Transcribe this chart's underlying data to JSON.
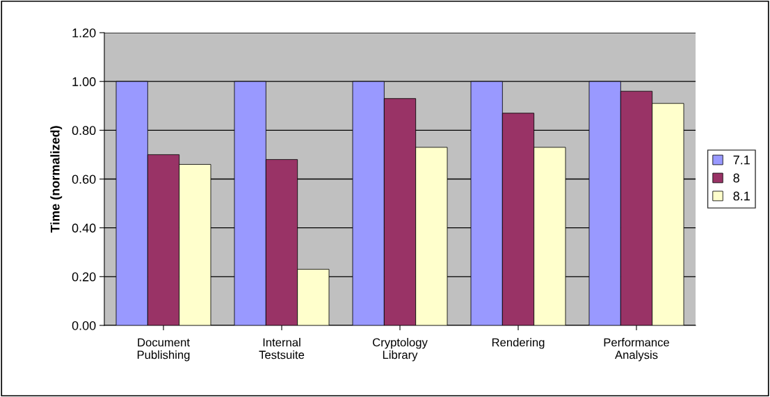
{
  "chart_data": {
    "type": "bar",
    "ylabel": "Time (normalized)",
    "categories": [
      "Document\nPublishing",
      "Internal\nTestsuite",
      "Cryptology\nLibrary",
      "Rendering",
      "Performance\nAnalysis"
    ],
    "series": [
      {
        "name": "7.1",
        "color": "#9999ff",
        "values": [
          1.0,
          1.0,
          1.0,
          1.0,
          1.0
        ]
      },
      {
        "name": "8",
        "color": "#993366",
        "values": [
          0.7,
          0.68,
          0.93,
          0.87,
          0.96
        ]
      },
      {
        "name": "8.1",
        "color": "#ffffcc",
        "values": [
          0.66,
          0.23,
          0.73,
          0.73,
          0.91
        ]
      }
    ],
    "ylim": [
      0,
      1.2
    ],
    "yticks": [
      {
        "value": 0,
        "label": "0.00"
      },
      {
        "value": 0.2,
        "label": "0.20"
      },
      {
        "value": 0.4,
        "label": "0.40"
      },
      {
        "value": 0.6,
        "label": "0.60"
      },
      {
        "value": 0.8,
        "label": "0.80"
      },
      {
        "value": 1.0,
        "label": "1.00"
      },
      {
        "value": 1.2,
        "label": "1.20"
      }
    ],
    "grid": "y",
    "legend": "right"
  }
}
